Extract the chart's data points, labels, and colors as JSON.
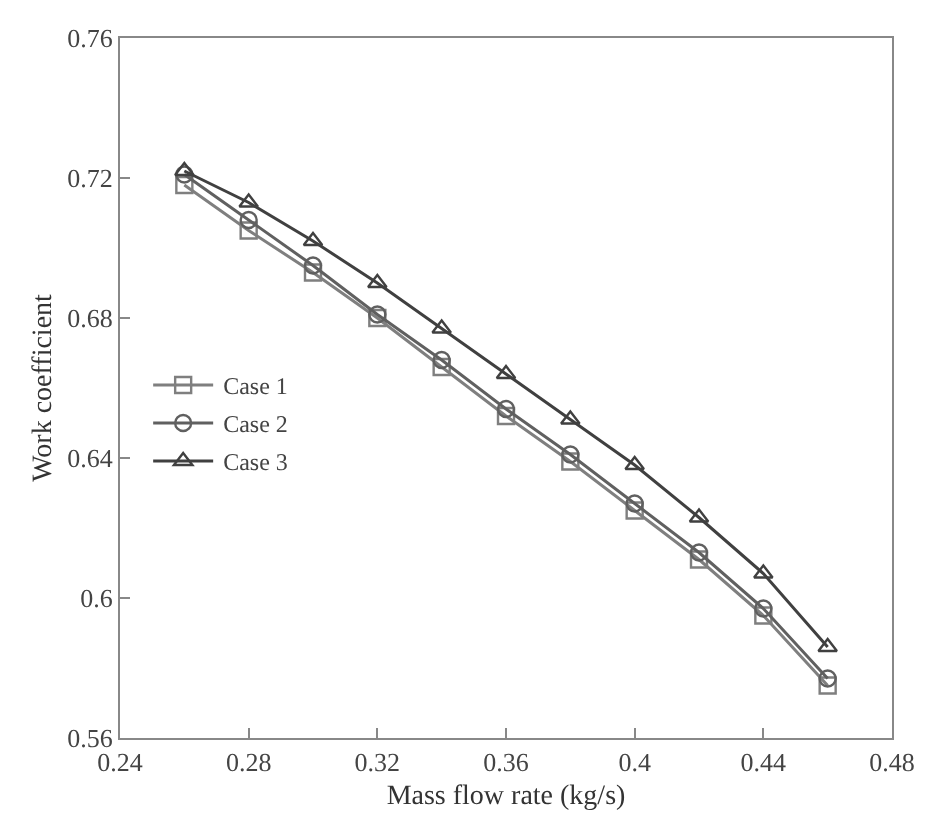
{
  "chart_data": {
    "type": "line",
    "xlabel": "Mass flow rate (kg/s)",
    "ylabel": "Work coefficient",
    "x": [
      0.26,
      0.28,
      0.3,
      0.32,
      0.34,
      0.36,
      0.38,
      0.4,
      0.42,
      0.44,
      0.46
    ],
    "series": [
      {
        "name": "Case 1",
        "color": "#7f7f7f",
        "marker": "square",
        "values": [
          0.718,
          0.705,
          0.693,
          0.68,
          0.666,
          0.652,
          0.639,
          0.625,
          0.611,
          0.595,
          0.575
        ]
      },
      {
        "name": "Case 2",
        "color": "#606060",
        "marker": "circle",
        "values": [
          0.721,
          0.708,
          0.695,
          0.681,
          0.668,
          0.654,
          0.641,
          0.627,
          0.613,
          0.597,
          0.577
        ]
      },
      {
        "name": "Case 3",
        "color": "#404040",
        "marker": "triangle",
        "values": [
          0.722,
          0.713,
          0.702,
          0.69,
          0.677,
          0.664,
          0.651,
          0.638,
          0.623,
          0.607,
          0.586
        ]
      }
    ],
    "xlim": [
      0.24,
      0.48
    ],
    "xticks": [
      0.24,
      0.28,
      0.32,
      0.36,
      0.4,
      0.44,
      0.48
    ],
    "ylim": [
      0.56,
      0.76
    ],
    "yticks": [
      0.56,
      0.6,
      0.64,
      0.68,
      0.72,
      0.76
    ],
    "legend": "left",
    "line_style": "solid"
  }
}
